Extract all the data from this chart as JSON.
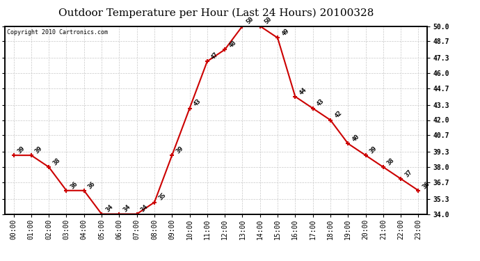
{
  "title": "Outdoor Temperature per Hour (Last 24 Hours) 20100328",
  "copyright_text": "Copyright 2010 Cartronics.com",
  "hours": [
    "00:00",
    "01:00",
    "02:00",
    "03:00",
    "04:00",
    "05:00",
    "06:00",
    "07:00",
    "08:00",
    "09:00",
    "10:00",
    "11:00",
    "12:00",
    "13:00",
    "14:00",
    "15:00",
    "16:00",
    "17:00",
    "18:00",
    "19:00",
    "20:00",
    "21:00",
    "22:00",
    "23:00"
  ],
  "temps": [
    39,
    39,
    38,
    36,
    36,
    34,
    34,
    34,
    35,
    39,
    43,
    47,
    48,
    50,
    50,
    49,
    44,
    43,
    42,
    40,
    39,
    38,
    37,
    36
  ],
  "ylim_min": 34.0,
  "ylim_max": 50.0,
  "ytick_labels": [
    "34.0",
    "35.3",
    "36.7",
    "38.0",
    "39.3",
    "40.7",
    "42.0",
    "43.3",
    "44.7",
    "46.0",
    "47.3",
    "48.7",
    "50.0"
  ],
  "ytick_values": [
    34.0,
    35.3,
    36.7,
    38.0,
    39.3,
    40.7,
    42.0,
    43.3,
    44.7,
    46.0,
    47.3,
    48.7,
    50.0
  ],
  "line_color": "#cc0000",
  "marker_color": "#cc0000",
  "bg_color": "#ffffff",
  "grid_color": "#c8c8c8",
  "title_fontsize": 11,
  "tick_fontsize": 7,
  "annotation_fontsize": 6.5,
  "copyright_fontsize": 6
}
